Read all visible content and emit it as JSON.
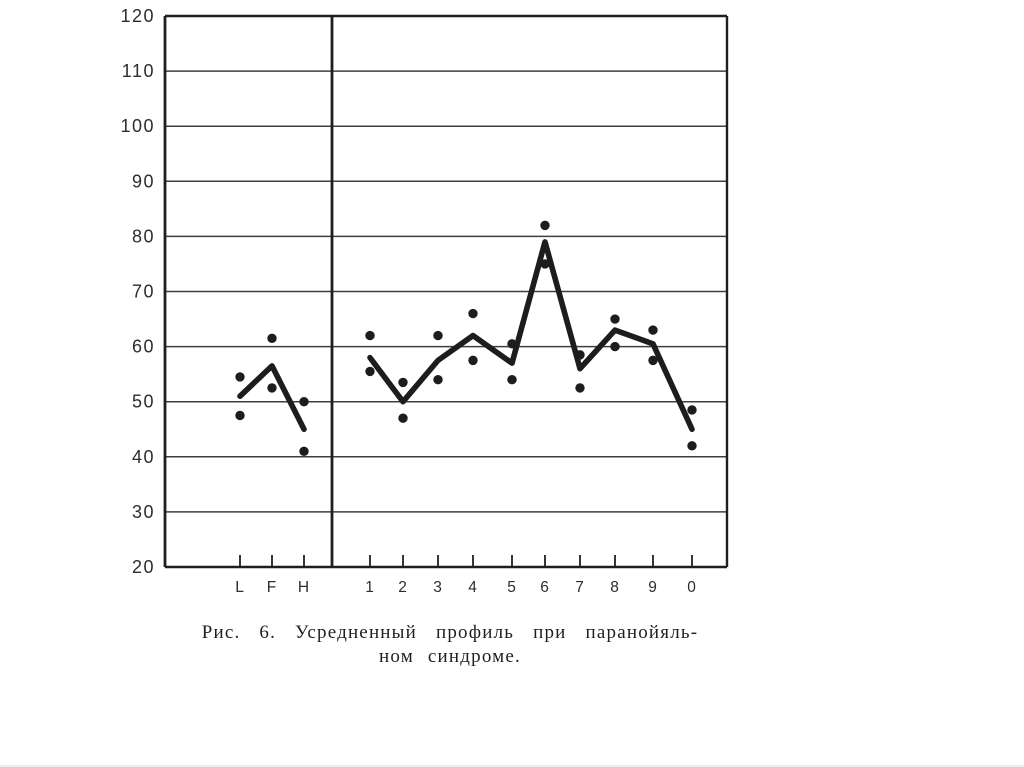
{
  "caption": {
    "line1": "Рис. 6. Усредненный профиль при паранойяль-",
    "line2": "ном синдроме."
  },
  "colors": {
    "ink": "#1d1d1d",
    "grid": "#3f3f3f",
    "frame": "#1f1f1f",
    "axis_label": "#2d2d2d"
  },
  "chart_data": {
    "type": "line",
    "title": "",
    "xlabel": "",
    "ylabel": "",
    "categories": [
      "L",
      "F",
      "Н",
      "1",
      "2",
      "3",
      "4",
      "5",
      "6",
      "7",
      "8",
      "9",
      "0"
    ],
    "separator_after_index": 2,
    "ylim": [
      20,
      120
    ],
    "yticks": [
      120,
      110,
      100,
      90,
      80,
      70,
      60,
      50,
      40,
      30,
      20
    ],
    "grid": "horizontal",
    "legend": "none",
    "series": [
      {
        "name": "averaged-profile-line",
        "style": "thick-line",
        "values": [
          51,
          56.5,
          45,
          58,
          50,
          57.5,
          62,
          57,
          79,
          56,
          63,
          60.5,
          45
        ]
      },
      {
        "name": "upper-scatter-dots",
        "style": "dots",
        "values": [
          54.5,
          61.5,
          50,
          62,
          53.5,
          62,
          66,
          60.5,
          82,
          58.5,
          65,
          63,
          48.5
        ]
      },
      {
        "name": "lower-scatter-dots",
        "style": "dots",
        "values": [
          47.5,
          52.5,
          41,
          55.5,
          47,
          54,
          57.5,
          54,
          75,
          52.5,
          60,
          57.5,
          42
        ]
      }
    ]
  }
}
